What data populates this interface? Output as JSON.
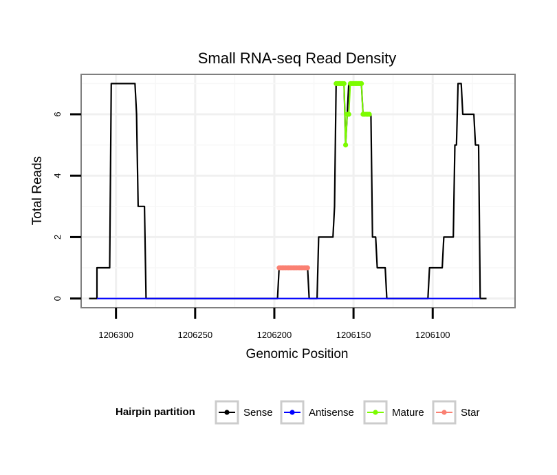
{
  "chart_data": {
    "type": "line",
    "title": "Small RNA-seq Read Density",
    "xlabel": "Genomic Position",
    "ylabel": "Total Reads",
    "xlim": [
      1206322,
      1206048
    ],
    "x_reversed": true,
    "ylim": [
      -0.3,
      7.3
    ],
    "x_ticks": [
      1206300,
      1206250,
      1206200,
      1206150,
      1206100
    ],
    "x_tick_labels": [
      "1206300",
      "1206250",
      "1206200",
      "1206150",
      "1206100"
    ],
    "y_ticks": [
      0,
      2,
      4,
      6
    ],
    "y_tick_labels": [
      "0",
      "2",
      "4",
      "6"
    ],
    "grid": true,
    "legend": {
      "title": "Hairpin partition",
      "position": "bottom",
      "entries": [
        {
          "name": "Sense",
          "color": "#000000"
        },
        {
          "name": "Antisense",
          "color": "#0000ff"
        },
        {
          "name": "Mature",
          "color": "#7cfc00"
        },
        {
          "name": "Star",
          "color": "#fa8072"
        }
      ]
    },
    "series": [
      {
        "name": "Sense",
        "color": "#000000",
        "style": "line",
        "points": [
          [
            1206317,
            0
          ],
          [
            1206312,
            0
          ],
          [
            1206312,
            1
          ],
          [
            1206304,
            1
          ],
          [
            1206303,
            7
          ],
          [
            1206288,
            7
          ],
          [
            1206287,
            6
          ],
          [
            1206286,
            3
          ],
          [
            1206282,
            3
          ],
          [
            1206281,
            0
          ],
          [
            1206260,
            0
          ],
          [
            1206220,
            0
          ],
          [
            1206200,
            0
          ],
          [
            1206198,
            0
          ],
          [
            1206197,
            1
          ],
          [
            1206179,
            1
          ],
          [
            1206178,
            0
          ],
          [
            1206173,
            0
          ],
          [
            1206172,
            2
          ],
          [
            1206163,
            2
          ],
          [
            1206162,
            3
          ],
          [
            1206161,
            7
          ],
          [
            1206156,
            7
          ],
          [
            1206155,
            5
          ],
          [
            1206153,
            7
          ],
          [
            1206145,
            7
          ],
          [
            1206144,
            6
          ],
          [
            1206139,
            6
          ],
          [
            1206138,
            2
          ],
          [
            1206136,
            2
          ],
          [
            1206135,
            1
          ],
          [
            1206130,
            1
          ],
          [
            1206129,
            0
          ],
          [
            1206103,
            0
          ],
          [
            1206102,
            1
          ],
          [
            1206094,
            1
          ],
          [
            1206093,
            2
          ],
          [
            1206087,
            2
          ],
          [
            1206086,
            5
          ],
          [
            1206085,
            5
          ],
          [
            1206084,
            7
          ],
          [
            1206082,
            7
          ],
          [
            1206081,
            6
          ],
          [
            1206074,
            6
          ],
          [
            1206073,
            5
          ],
          [
            1206071,
            5
          ],
          [
            1206070,
            0
          ],
          [
            1206066,
            0
          ]
        ]
      },
      {
        "name": "Antisense",
        "color": "#0000ff",
        "style": "line",
        "points": [
          [
            1206312,
            0
          ],
          [
            1206070,
            0
          ]
        ]
      },
      {
        "name": "Mature",
        "color": "#7cfc00",
        "style": "line+points",
        "points": [
          [
            1206161,
            7
          ],
          [
            1206160,
            7
          ],
          [
            1206159,
            7
          ],
          [
            1206158,
            7
          ],
          [
            1206157,
            7
          ],
          [
            1206156,
            7
          ],
          [
            1206155,
            5
          ],
          [
            1206154,
            6
          ],
          [
            1206153,
            6
          ],
          [
            1206152,
            7
          ],
          [
            1206151,
            7
          ],
          [
            1206150,
            7
          ],
          [
            1206149,
            7
          ],
          [
            1206148,
            7
          ],
          [
            1206147,
            7
          ],
          [
            1206146,
            7
          ],
          [
            1206145,
            7
          ],
          [
            1206144,
            6
          ],
          [
            1206143,
            6
          ],
          [
            1206142,
            6
          ],
          [
            1206141,
            6
          ],
          [
            1206140,
            6
          ]
        ]
      },
      {
        "name": "Star",
        "color": "#fa8072",
        "style": "line+points",
        "points": [
          [
            1206197,
            1
          ],
          [
            1206196,
            1
          ],
          [
            1206195,
            1
          ],
          [
            1206194,
            1
          ],
          [
            1206193,
            1
          ],
          [
            1206192,
            1
          ],
          [
            1206191,
            1
          ],
          [
            1206190,
            1
          ],
          [
            1206189,
            1
          ],
          [
            1206188,
            1
          ],
          [
            1206187,
            1
          ],
          [
            1206186,
            1
          ],
          [
            1206185,
            1
          ],
          [
            1206184,
            1
          ],
          [
            1206183,
            1
          ],
          [
            1206182,
            1
          ],
          [
            1206181,
            1
          ],
          [
            1206180,
            1
          ],
          [
            1206179,
            1
          ]
        ]
      }
    ]
  }
}
